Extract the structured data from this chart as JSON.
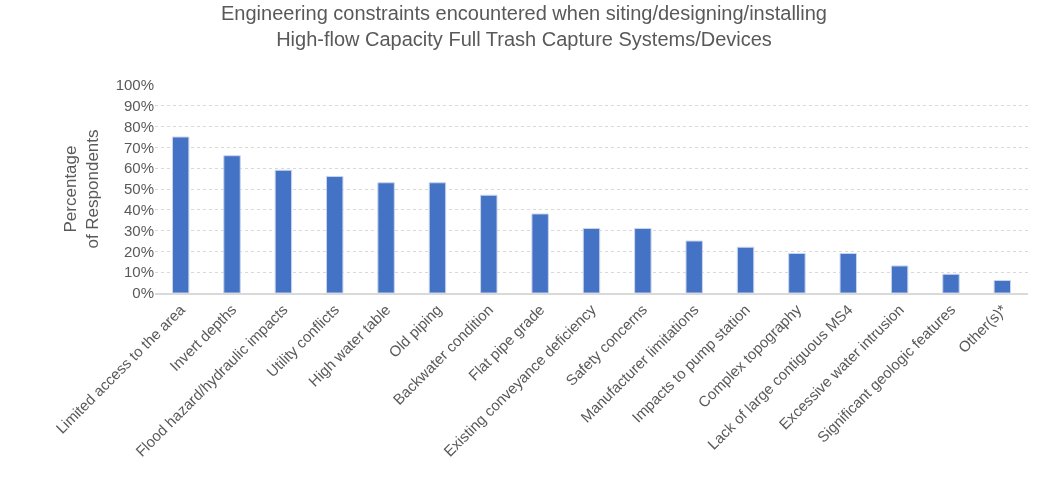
{
  "chart_data": {
    "type": "bar",
    "title": "Engineering constraints encountered when siting/designing/installing\nHigh-flow Capacity Full Trash Capture Systems/Devices",
    "ylabel": "Percentage\nof Respondents",
    "categories": [
      "Limited access to the area",
      "Invert depths",
      "Flood hazard/hydraulic impacts",
      "Utility conflicts",
      "High water table",
      "Old piping",
      "Backwater condition",
      "Flat pipe grade",
      "Existing conveyance deficiency",
      "Safety concerns",
      "Manufacturer limitations",
      "Impacts to pump station",
      "Complex topography",
      "Lack of large contiguous MS4",
      "Excessive water intrusion",
      "Significant geologic features",
      "Other(s)*"
    ],
    "values": [
      75,
      66,
      59,
      56,
      53,
      53,
      47,
      38,
      31,
      31,
      25,
      22,
      19,
      19,
      13,
      9,
      6
    ],
    "color": "#4472c4",
    "ylim": [
      0,
      100
    ],
    "yticks": [
      {
        "value": 0,
        "label": "0%"
      },
      {
        "value": 10,
        "label": "10%"
      },
      {
        "value": 20,
        "label": "20%"
      },
      {
        "value": 30,
        "label": "30%"
      },
      {
        "value": 40,
        "label": "40%"
      },
      {
        "value": 50,
        "label": "50%"
      },
      {
        "value": 60,
        "label": "60%"
      },
      {
        "value": 70,
        "label": "70%"
      },
      {
        "value": 80,
        "label": "80%"
      },
      {
        "value": 90,
        "label": "90%"
      },
      {
        "value": 100,
        "label": "100%"
      }
    ],
    "grid": "y"
  }
}
